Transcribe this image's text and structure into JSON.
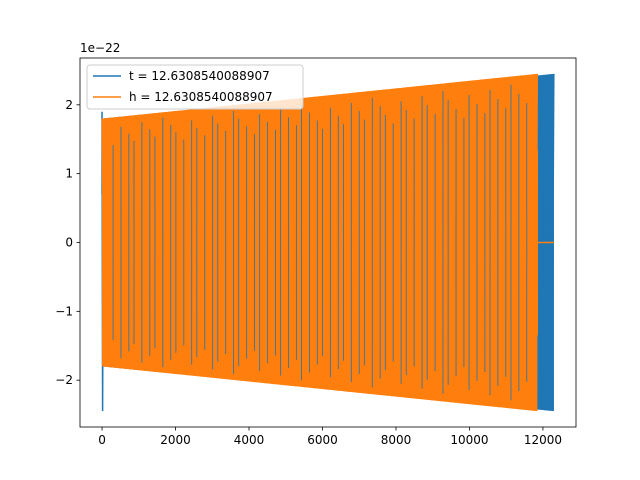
{
  "chart_data": {
    "type": "line",
    "title": "",
    "xlabel": "",
    "ylabel": "",
    "offset_text": "1e−22",
    "xlim": [
      -600,
      12900
    ],
    "ylim": [
      -2.68,
      2.68
    ],
    "x_ticks": [
      0,
      2000,
      4000,
      6000,
      8000,
      10000,
      12000
    ],
    "x_tick_labels": [
      "0",
      "2000",
      "4000",
      "6000",
      "8000",
      "10000",
      "12000"
    ],
    "y_ticks": [
      -2,
      -1,
      0,
      1,
      2
    ],
    "y_tick_labels": [
      "−2",
      "−1",
      "0",
      "1",
      "2"
    ],
    "grid": false,
    "legend_position": "upper-left",
    "series": [
      {
        "name": "t = 12.6308540088907",
        "color": "#1f77b4",
        "x_start": 0,
        "x_end": 12300,
        "peak_at_start": 2.45,
        "amplitude_envelope": {
          "x": [
            0,
            12300
          ],
          "y": [
            1.8,
            2.45
          ]
        }
      },
      {
        "name": "h = 12.6308540088907",
        "color": "#ff7f0e",
        "x_start": 0,
        "x_end": 11850,
        "flat_zero_to": 12300,
        "amplitude_envelope": {
          "x": [
            0,
            11850
          ],
          "y": [
            1.8,
            2.45
          ]
        }
      }
    ]
  }
}
